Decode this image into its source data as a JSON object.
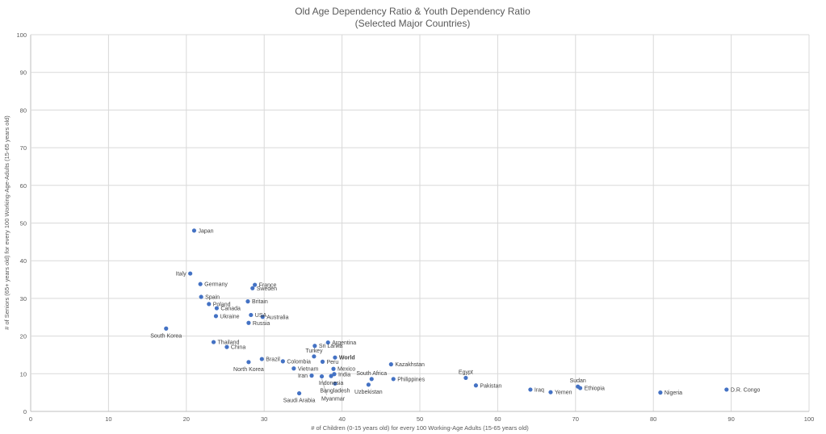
{
  "chart_data": {
    "type": "scatter",
    "title": "Old Age Dependency Ratio & Youth Dependency Ratio",
    "subtitle": "(Selected Major Countries)",
    "xlabel": "# of Children (0-15 years old) for every 100 Working-Age Adults (15-65 years old)",
    "ylabel": "# of Seniors (65+ years old) for every 100 Working-Age-Adults (15-65 years old)",
    "xlim": [
      0,
      100
    ],
    "ylim": [
      0,
      100
    ],
    "x_ticks": [
      "0",
      "10",
      "20",
      "30",
      "40",
      "50",
      "60",
      "70",
      "80",
      "90",
      "100"
    ],
    "y_ticks": [
      "0",
      "10",
      "20",
      "30",
      "40",
      "50",
      "60",
      "70",
      "80",
      "90",
      "100"
    ],
    "grid": true,
    "marker_color": "#4472C4",
    "points": [
      {
        "label": "Japan",
        "x": 21.0,
        "y": 48.0,
        "pos": "right"
      },
      {
        "label": "Italy",
        "x": 20.5,
        "y": 36.6,
        "pos": "left"
      },
      {
        "label": "Germany",
        "x": 21.8,
        "y": 33.8,
        "pos": "right"
      },
      {
        "label": "France",
        "x": 28.8,
        "y": 33.6,
        "pos": "right"
      },
      {
        "label": "Sweden",
        "x": 28.5,
        "y": 32.7,
        "pos": "right"
      },
      {
        "label": "Spain",
        "x": 21.9,
        "y": 30.4,
        "pos": "right"
      },
      {
        "label": "Britain",
        "x": 27.9,
        "y": 29.2,
        "pos": "right"
      },
      {
        "label": "Poland",
        "x": 22.9,
        "y": 28.5,
        "pos": "right"
      },
      {
        "label": "Canada",
        "x": 23.9,
        "y": 27.4,
        "pos": "right"
      },
      {
        "label": "USA",
        "x": 28.3,
        "y": 25.6,
        "pos": "right"
      },
      {
        "label": "Australia",
        "x": 29.8,
        "y": 25.1,
        "pos": "right"
      },
      {
        "label": "Ukraine",
        "x": 23.8,
        "y": 25.3,
        "pos": "right"
      },
      {
        "label": "Russia",
        "x": 28.0,
        "y": 23.5,
        "pos": "right"
      },
      {
        "label": "South Korea",
        "x": 17.4,
        "y": 22.0,
        "pos": "below"
      },
      {
        "label": "Thailand",
        "x": 23.5,
        "y": 18.4,
        "pos": "right"
      },
      {
        "label": "China",
        "x": 25.2,
        "y": 17.1,
        "pos": "right"
      },
      {
        "label": "Argentina",
        "x": 38.2,
        "y": 18.3,
        "pos": "right"
      },
      {
        "label": "Sri Lanka",
        "x": 36.5,
        "y": 17.4,
        "pos": "right"
      },
      {
        "label": "Turkey",
        "x": 36.4,
        "y": 14.6,
        "pos": "above"
      },
      {
        "label": "World",
        "x": 39.1,
        "y": 14.3,
        "pos": "right",
        "bold": true
      },
      {
        "label": "Brazil",
        "x": 29.7,
        "y": 13.9,
        "pos": "right"
      },
      {
        "label": "Colombia",
        "x": 32.4,
        "y": 13.3,
        "pos": "right"
      },
      {
        "label": "Peru",
        "x": 37.5,
        "y": 13.2,
        "pos": "right"
      },
      {
        "label": "Kazakhstan",
        "x": 46.3,
        "y": 12.5,
        "pos": "right"
      },
      {
        "label": "North Korea",
        "x": 28.0,
        "y": 13.1,
        "pos": "below"
      },
      {
        "label": "Vietnam",
        "x": 33.8,
        "y": 11.4,
        "pos": "right"
      },
      {
        "label": "Mexico",
        "x": 38.9,
        "y": 11.3,
        "pos": "right"
      },
      {
        "label": "India",
        "x": 39.0,
        "y": 9.9,
        "pos": "right"
      },
      {
        "label": "Iran",
        "x": 36.1,
        "y": 9.5,
        "pos": "left"
      },
      {
        "label": "Indonesia",
        "x": 38.6,
        "y": 9.4,
        "pos": "below"
      },
      {
        "label": "South Africa",
        "x": 43.8,
        "y": 8.6,
        "pos": "above"
      },
      {
        "label": "Philippines",
        "x": 46.6,
        "y": 8.6,
        "pos": "right"
      },
      {
        "label": "Bangladesh",
        "x": 39.1,
        "y": 7.4,
        "pos": "below"
      },
      {
        "label": "Uzbekistan",
        "x": 43.4,
        "y": 7.1,
        "pos": "below"
      },
      {
        "label": "Egypt",
        "x": 55.9,
        "y": 8.9,
        "pos": "above"
      },
      {
        "label": "Pakistan",
        "x": 57.2,
        "y": 6.9,
        "pos": "right"
      },
      {
        "label": "Sudan",
        "x": 70.3,
        "y": 6.6,
        "pos": "above"
      },
      {
        "label": "Ethiopia",
        "x": 70.6,
        "y": 6.2,
        "pos": "right"
      },
      {
        "label": "Iraq",
        "x": 64.2,
        "y": 5.8,
        "pos": "right"
      },
      {
        "label": "Yemen",
        "x": 66.8,
        "y": 5.1,
        "pos": "right"
      },
      {
        "label": "Nigeria",
        "x": 80.9,
        "y": 5.0,
        "pos": "right"
      },
      {
        "label": "D.R. Congo",
        "x": 89.4,
        "y": 5.8,
        "pos": "right"
      },
      {
        "label": "Saudi Arabia",
        "x": 34.5,
        "y": 4.8,
        "pos": "below"
      },
      {
        "label": "Myanmar",
        "x": 37.4,
        "y": 9.3,
        "pos": "below"
      }
    ]
  }
}
